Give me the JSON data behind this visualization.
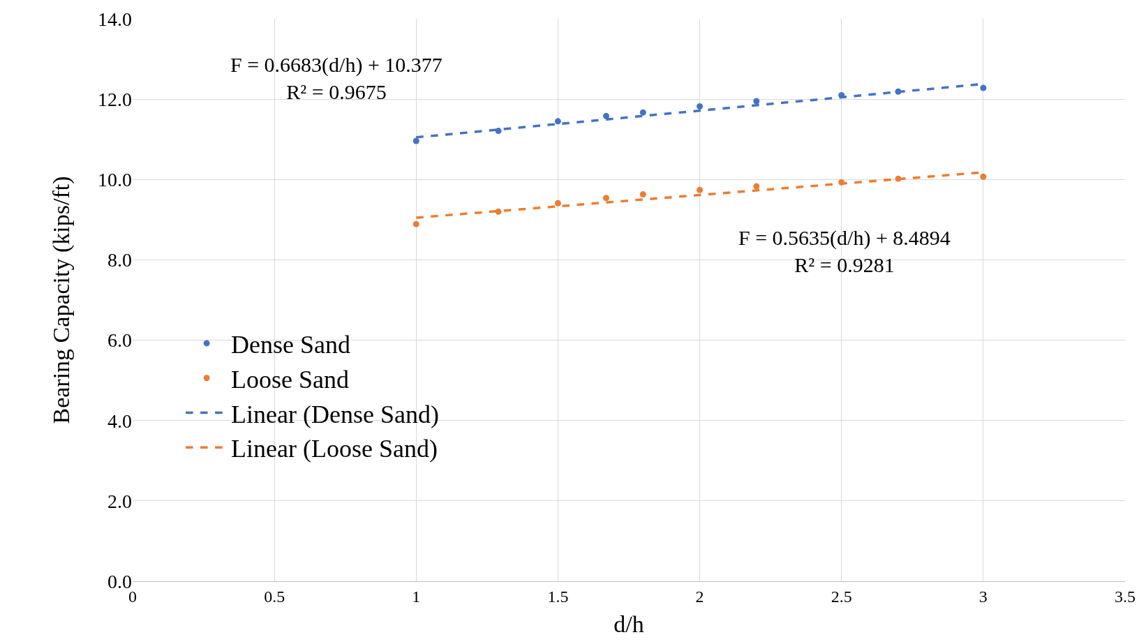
{
  "chart_data": {
    "type": "scatter",
    "xlabel": "d/h",
    "ylabel": "Bearing Capacity (kips/ft)",
    "xlim": [
      0,
      3.5
    ],
    "xticks": [
      0,
      0.5,
      1,
      1.5,
      2,
      2.5,
      3,
      3.5
    ],
    "ylim": [
      0,
      14
    ],
    "yticks": [
      {
        "value": 0,
        "label": "0.0"
      },
      {
        "value": 2,
        "label": "2.0"
      },
      {
        "value": 4,
        "label": "4.0"
      },
      {
        "value": 6,
        "label": "6.0"
      },
      {
        "value": 8,
        "label": "8.0"
      },
      {
        "value": 10,
        "label": "10.0"
      },
      {
        "value": 12,
        "label": "12.0"
      },
      {
        "value": 14,
        "label": "14.0"
      }
    ],
    "grid": true,
    "legend": "left",
    "series": [
      {
        "name": "Dense Sand",
        "marker": "circle",
        "color": "#4472c4",
        "x": [
          1,
          1.29,
          1.5,
          1.67,
          1.8,
          2,
          2.2,
          2.5,
          2.7,
          3
        ],
        "values": [
          10.96,
          11.21,
          11.45,
          11.58,
          11.67,
          11.82,
          11.95,
          12.1,
          12.19,
          12.28
        ]
      },
      {
        "name": "Loose Sand",
        "marker": "circle",
        "color": "#ed7d31",
        "x": [
          1,
          1.29,
          1.5,
          1.67,
          1.8,
          2,
          2.2,
          2.5,
          2.7,
          3
        ],
        "values": [
          8.89,
          9.2,
          9.41,
          9.54,
          9.63,
          9.74,
          9.83,
          9.93,
          10.02,
          10.07
        ]
      },
      {
        "name": "Linear (Dense Sand)",
        "type": "line",
        "line_style": "dashed",
        "color": "#4472c4",
        "x": [
          1,
          3
        ],
        "values": [
          11.05,
          12.38
        ]
      },
      {
        "name": "Linear (Loose Sand)",
        "type": "line",
        "line_style": "dashed",
        "color": "#ed7d31",
        "x": [
          1,
          3
        ],
        "values": [
          9.05,
          10.18
        ]
      }
    ],
    "annotations": [
      "F = 0.6683(d/h) + 10.377\nR² = 0.9675",
      "F = 0.5635(d/h) + 8.4894\nR² = 0.9281"
    ]
  }
}
